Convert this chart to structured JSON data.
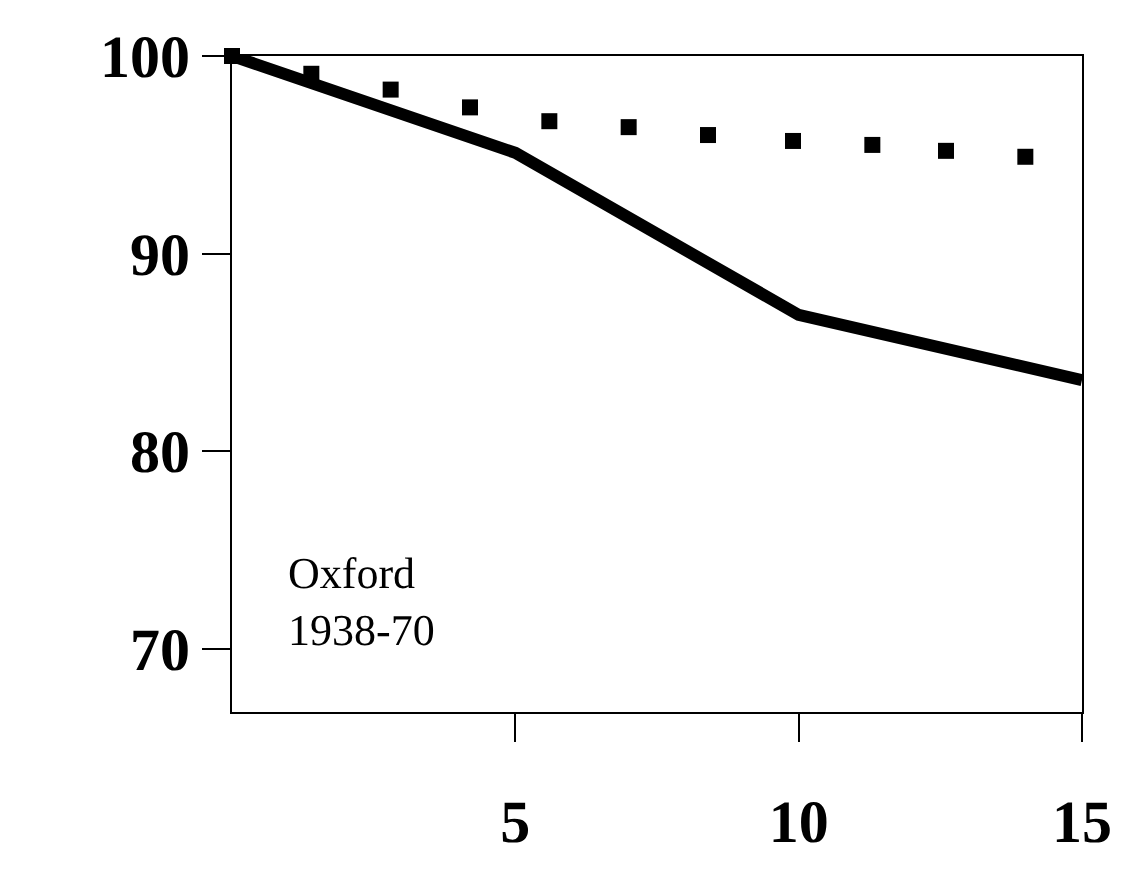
{
  "chart_data": {
    "type": "line",
    "xlim": [
      0,
      15
    ],
    "ylim": [
      66.8,
      100
    ],
    "xticks": [
      5,
      10,
      15
    ],
    "yticks": [
      70,
      80,
      90,
      100
    ],
    "legend": false,
    "series": [
      {
        "color": "#000000",
        "line_style": "solid",
        "x": [
          0,
          5,
          10,
          15
        ],
        "values": [
          100,
          95.1,
          86.9,
          83.6
        ]
      },
      {
        "type": "scatter",
        "color": "#000000",
        "marker": "square",
        "x": [
          0,
          1.4,
          2.8,
          4.2,
          5.6,
          7.0,
          8.4,
          9.9,
          11.3,
          12.6,
          14.0
        ],
        "values": [
          100,
          99.1,
          98.3,
          97.4,
          96.7,
          96.4,
          96.0,
          95.7,
          95.5,
          95.2,
          94.9
        ]
      }
    ],
    "annotations": [
      "Oxford\n1938-70"
    ]
  }
}
